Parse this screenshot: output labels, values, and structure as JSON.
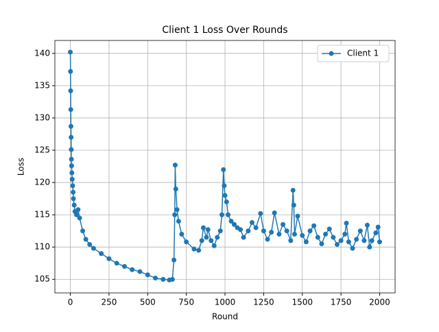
{
  "chart_data": {
    "type": "line",
    "title": "Client 1 Loss Over Rounds",
    "x_label": "Round",
    "y_label": "Loss",
    "x": [
      0,
      1,
      2,
      3,
      4,
      5,
      6,
      7,
      8,
      10,
      12,
      15,
      18,
      20,
      25,
      30,
      40,
      50,
      60,
      80,
      100,
      125,
      150,
      200,
      250,
      300,
      350,
      400,
      450,
      500,
      550,
      600,
      640,
      660,
      670,
      675,
      678,
      682,
      690,
      700,
      720,
      750,
      800,
      830,
      850,
      860,
      880,
      890,
      910,
      930,
      950,
      970,
      980,
      990,
      995,
      1000,
      1010,
      1020,
      1040,
      1060,
      1080,
      1100,
      1120,
      1150,
      1175,
      1200,
      1230,
      1250,
      1275,
      1300,
      1320,
      1350,
      1375,
      1400,
      1425,
      1440,
      1445,
      1450,
      1470,
      1500,
      1525,
      1550,
      1575,
      1600,
      1625,
      1650,
      1675,
      1700,
      1725,
      1750,
      1775,
      1785,
      1800,
      1825,
      1850,
      1875,
      1900,
      1920,
      1935,
      1950,
      1975,
      1990,
      2000
    ],
    "series": [
      {
        "name": "Client 1",
        "color": "#1f77b4",
        "values": [
          140.2,
          137.2,
          134.2,
          131.3,
          128.7,
          127,
          125.1,
          123.6,
          122.6,
          121.5,
          120.5,
          119.5,
          118.5,
          117.5,
          116.5,
          115.5,
          115,
          115.8,
          114.5,
          112.5,
          111.2,
          110.4,
          109.8,
          109,
          108.2,
          107.5,
          107,
          106.5,
          106.2,
          105.7,
          105.2,
          105,
          104.9,
          105,
          108,
          115,
          122.7,
          119,
          115.8,
          114,
          112,
          110.8,
          109.7,
          109.5,
          111,
          113,
          111.5,
          112.7,
          111,
          110.2,
          111.5,
          112.5,
          115,
          122,
          119.5,
          118,
          117,
          115,
          114,
          113.5,
          113,
          112.7,
          111.5,
          112.5,
          113.8,
          113,
          115.2,
          112.5,
          111.2,
          112.3,
          115.3,
          112,
          113.5,
          112.5,
          111,
          118.8,
          116.5,
          112,
          114.8,
          111.8,
          110.8,
          112.5,
          113.3,
          111.5,
          110.5,
          112,
          112.8,
          111.5,
          110.4,
          111,
          112,
          113.7,
          110.8,
          109.8,
          111.2,
          112.5,
          111,
          113.4,
          110,
          111,
          112.2,
          113.1,
          110.8
        ]
      }
    ],
    "xlim": [
      -100,
      2100
    ],
    "ylim": [
      102.9,
      142.0
    ],
    "xticks": [
      0,
      250,
      500,
      750,
      1000,
      1250,
      1500,
      1750,
      2000
    ],
    "yticks": [
      105,
      110,
      115,
      120,
      125,
      130,
      135,
      140
    ],
    "grid": true,
    "legend": "upper right"
  }
}
